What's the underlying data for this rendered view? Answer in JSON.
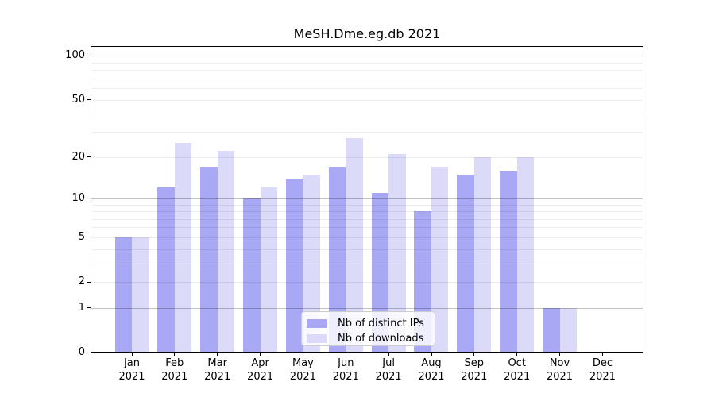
{
  "chart_data": {
    "type": "bar",
    "title": "MeSH.Dme.eg.db 2021",
    "categories": [
      "Jan",
      "Feb",
      "Mar",
      "Apr",
      "May",
      "Jun",
      "Jul",
      "Aug",
      "Sep",
      "Oct",
      "Nov",
      "Dec"
    ],
    "x_year_label": "2021",
    "series": [
      {
        "name": "Nb of distinct IPs",
        "color": "#a8a8f4",
        "values": [
          5,
          12,
          17,
          10,
          14,
          17,
          11,
          8,
          15,
          16,
          1,
          0
        ]
      },
      {
        "name": "Nb of downloads",
        "color": "#dbdbf9",
        "values": [
          5,
          25,
          22,
          12,
          15,
          27,
          21,
          17,
          20,
          20,
          1,
          0
        ]
      }
    ],
    "xlabel": "",
    "ylabel": "",
    "y_scale": "log1p",
    "ylim": [
      0,
      120
    ],
    "y_tick_labels": [
      100,
      50,
      20,
      10,
      5,
      2,
      1,
      0
    ],
    "minor_gridlines": [
      2,
      3,
      4,
      5,
      6,
      7,
      8,
      9,
      20,
      30,
      40,
      50,
      60,
      70,
      80,
      90
    ],
    "major_gridlines": [
      1,
      10,
      100
    ],
    "grid": true,
    "legend_position": "lower center inside plot",
    "colors": {
      "axis": "#000000",
      "minor_grid": "#ededed",
      "major_grid": "#c2c2c2",
      "legend_border": "#cccccc",
      "background": "#ffffff"
    }
  }
}
